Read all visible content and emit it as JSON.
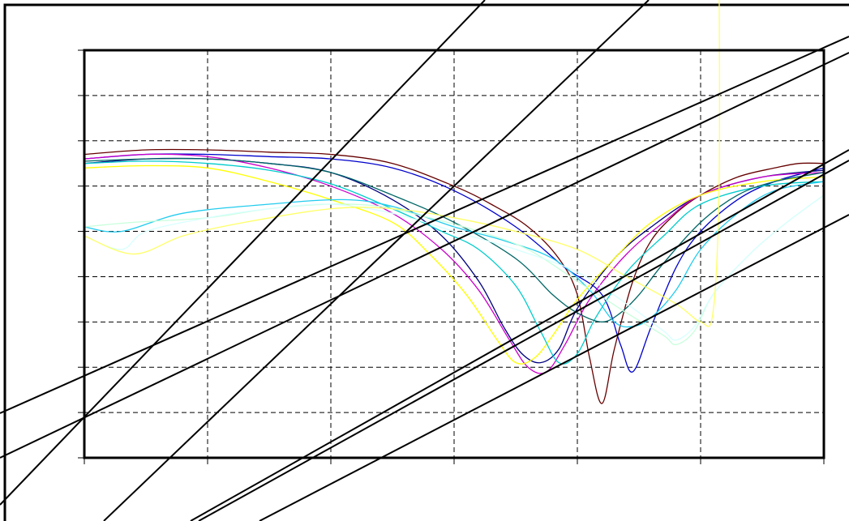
{
  "chart_data": {
    "type": "line",
    "title": "",
    "xlabel": "",
    "ylabel": "",
    "xlim": [
      0,
      6
    ],
    "ylim": [
      0,
      9
    ],
    "grid": true,
    "grid_style": "dashed",
    "legend": "none",
    "series": [
      {
        "color": "#660000",
        "values": [
          [
            0,
            6.7
          ],
          [
            0.5,
            6.8
          ],
          [
            1,
            6.8
          ],
          [
            1.5,
            6.75
          ],
          [
            2,
            6.7
          ],
          [
            2.5,
            6.5
          ],
          [
            3,
            6.0
          ],
          [
            3.3,
            5.6
          ],
          [
            3.6,
            5.1
          ],
          [
            3.85,
            4.4
          ],
          [
            4.0,
            3.6
          ],
          [
            4.1,
            2.2
          ],
          [
            4.2,
            1.2
          ],
          [
            4.3,
            2.4
          ],
          [
            4.45,
            3.9
          ],
          [
            4.6,
            4.8
          ],
          [
            4.8,
            5.4
          ],
          [
            5.0,
            5.8
          ],
          [
            5.3,
            6.2
          ],
          [
            5.6,
            6.4
          ],
          [
            5.8,
            6.5
          ],
          [
            6,
            6.5
          ]
        ]
      },
      {
        "color": "#0000cc",
        "values": [
          [
            0,
            6.6
          ],
          [
            0.5,
            6.7
          ],
          [
            1,
            6.7
          ],
          [
            1.5,
            6.65
          ],
          [
            2,
            6.6
          ],
          [
            2.5,
            6.4
          ],
          [
            3,
            5.9
          ],
          [
            3.5,
            5.1
          ],
          [
            3.9,
            4.2
          ],
          [
            4.2,
            3.6
          ],
          [
            4.35,
            2.5
          ],
          [
            4.45,
            1.9
          ],
          [
            4.6,
            2.9
          ],
          [
            4.8,
            4.2
          ],
          [
            5.0,
            5.0
          ],
          [
            5.3,
            5.7
          ],
          [
            5.6,
            6.1
          ],
          [
            6,
            6.4
          ]
        ]
      },
      {
        "color": "#000080",
        "values": [
          [
            0,
            6.5
          ],
          [
            0.5,
            6.6
          ],
          [
            1,
            6.6
          ],
          [
            1.5,
            6.5
          ],
          [
            2,
            6.3
          ],
          [
            2.5,
            5.7
          ],
          [
            2.9,
            4.9
          ],
          [
            3.2,
            3.9
          ],
          [
            3.4,
            2.9
          ],
          [
            3.55,
            2.3
          ],
          [
            3.7,
            2.1
          ],
          [
            3.85,
            2.4
          ],
          [
            4.0,
            3.3
          ],
          [
            4.3,
            4.4
          ],
          [
            4.6,
            5.1
          ],
          [
            5.0,
            5.8
          ],
          [
            5.5,
            6.2
          ],
          [
            6,
            6.35
          ]
        ]
      },
      {
        "color": "#cc00cc",
        "values": [
          [
            0,
            6.6
          ],
          [
            0.5,
            6.7
          ],
          [
            1,
            6.65
          ],
          [
            1.5,
            6.4
          ],
          [
            2,
            6.0
          ],
          [
            2.5,
            5.4
          ],
          [
            2.9,
            4.6
          ],
          [
            3.2,
            3.7
          ],
          [
            3.45,
            2.6
          ],
          [
            3.6,
            2.0
          ],
          [
            3.75,
            1.9
          ],
          [
            3.9,
            2.5
          ],
          [
            4.1,
            3.5
          ],
          [
            4.4,
            4.5
          ],
          [
            4.7,
            5.2
          ],
          [
            5.0,
            5.8
          ],
          [
            5.5,
            6.2
          ],
          [
            6,
            6.3
          ]
        ]
      },
      {
        "color": "#ffff00",
        "values": [
          [
            0,
            6.4
          ],
          [
            0.5,
            6.45
          ],
          [
            1,
            6.4
          ],
          [
            1.5,
            6.1
          ],
          [
            2,
            5.7
          ],
          [
            2.5,
            5.2
          ],
          [
            2.8,
            4.5
          ],
          [
            3.1,
            3.6
          ],
          [
            3.35,
            2.6
          ],
          [
            3.5,
            2.1
          ],
          [
            3.65,
            2.2
          ],
          [
            3.8,
            2.7
          ],
          [
            4.0,
            3.5
          ],
          [
            4.3,
            4.4
          ],
          [
            4.6,
            5.2
          ],
          [
            5.0,
            5.8
          ],
          [
            5.5,
            6.1
          ],
          [
            6,
            6.2
          ]
        ]
      },
      {
        "color": "#00cccc",
        "values": [
          [
            0,
            6.5
          ],
          [
            0.5,
            6.55
          ],
          [
            1,
            6.5
          ],
          [
            1.5,
            6.35
          ],
          [
            2,
            6.05
          ],
          [
            2.5,
            5.5
          ],
          [
            2.9,
            5.0
          ],
          [
            3.2,
            4.6
          ],
          [
            3.5,
            3.8
          ],
          [
            3.7,
            2.8
          ],
          [
            3.85,
            2.1
          ],
          [
            4.0,
            2.3
          ],
          [
            4.15,
            3.1
          ],
          [
            4.4,
            4.1
          ],
          [
            4.7,
            4.9
          ],
          [
            5.0,
            5.6
          ],
          [
            5.5,
            6.0
          ],
          [
            6,
            6.1
          ]
        ]
      },
      {
        "color": "#006666",
        "values": [
          [
            0,
            6.55
          ],
          [
            0.5,
            6.6
          ],
          [
            1,
            6.6
          ],
          [
            1.5,
            6.5
          ],
          [
            2,
            6.3
          ],
          [
            2.5,
            5.8
          ],
          [
            3,
            5.2
          ],
          [
            3.5,
            4.4
          ],
          [
            3.8,
            3.6
          ],
          [
            4.0,
            3.2
          ],
          [
            4.2,
            3.0
          ],
          [
            4.35,
            3.2
          ],
          [
            4.5,
            3.6
          ],
          [
            4.7,
            4.3
          ],
          [
            5.0,
            5.2
          ],
          [
            5.3,
            5.8
          ],
          [
            5.6,
            6.1
          ],
          [
            6,
            6.3
          ]
        ]
      },
      {
        "color": "#22ccee",
        "values": [
          [
            0,
            5.1
          ],
          [
            0.3,
            5.0
          ],
          [
            0.8,
            5.4
          ],
          [
            1.5,
            5.6
          ],
          [
            2.1,
            5.7
          ],
          [
            2.5,
            5.55
          ],
          [
            3,
            5.1
          ],
          [
            3.4,
            4.8
          ],
          [
            3.8,
            4.4
          ],
          [
            4.1,
            3.7
          ],
          [
            4.3,
            3.0
          ],
          [
            4.45,
            2.9
          ],
          [
            4.6,
            3.1
          ],
          [
            4.8,
            3.7
          ],
          [
            5.0,
            4.6
          ],
          [
            5.3,
            5.4
          ],
          [
            5.6,
            5.9
          ],
          [
            6,
            6.1
          ]
        ]
      },
      {
        "color": "#c8ffdc",
        "values": [
          [
            0,
            5.1
          ],
          [
            0.4,
            5.2
          ],
          [
            1,
            5.3
          ],
          [
            1.5,
            5.5
          ],
          [
            2,
            5.6
          ],
          [
            2.4,
            5.55
          ],
          [
            2.8,
            5.3
          ],
          [
            3.2,
            5.0
          ],
          [
            3.6,
            4.6
          ],
          [
            4.0,
            3.9
          ],
          [
            4.4,
            3.2
          ],
          [
            4.7,
            2.7
          ],
          [
            4.8,
            2.5
          ],
          [
            4.95,
            2.8
          ],
          [
            5.1,
            3.6
          ],
          [
            5.4,
            4.5
          ],
          [
            5.7,
            5.2
          ],
          [
            6,
            5.8
          ]
        ]
      },
      {
        "color": "#d8ffff",
        "values": [
          [
            0,
            4.9
          ],
          [
            0.3,
            4.6
          ],
          [
            0.5,
            5.0
          ],
          [
            1,
            5.3
          ],
          [
            1.5,
            5.5
          ],
          [
            2,
            5.6
          ],
          [
            2.5,
            5.4
          ],
          [
            3,
            5.0
          ],
          [
            3.5,
            4.6
          ],
          [
            4.0,
            4.1
          ],
          [
            4.4,
            3.4
          ],
          [
            4.7,
            2.8
          ],
          [
            4.8,
            2.6
          ],
          [
            4.95,
            2.9
          ],
          [
            5.1,
            3.6
          ],
          [
            5.4,
            4.5
          ],
          [
            5.7,
            5.2
          ],
          [
            6,
            5.8
          ]
        ]
      },
      {
        "color": "#ffff66",
        "values": [
          [
            0,
            4.9
          ],
          [
            0.4,
            4.5
          ],
          [
            0.8,
            4.9
          ],
          [
            1.3,
            5.2
          ],
          [
            2,
            5.5
          ],
          [
            2.5,
            5.5
          ],
          [
            3,
            5.3
          ],
          [
            3.5,
            5.0
          ],
          [
            4.0,
            4.6
          ],
          [
            4.4,
            4.0
          ],
          [
            4.8,
            3.4
          ],
          [
            5.0,
            3.0
          ],
          [
            5.1,
            3.2
          ],
          [
            5.15,
            6.0
          ],
          [
            5.15,
            11.0
          ]
        ]
      }
    ]
  }
}
